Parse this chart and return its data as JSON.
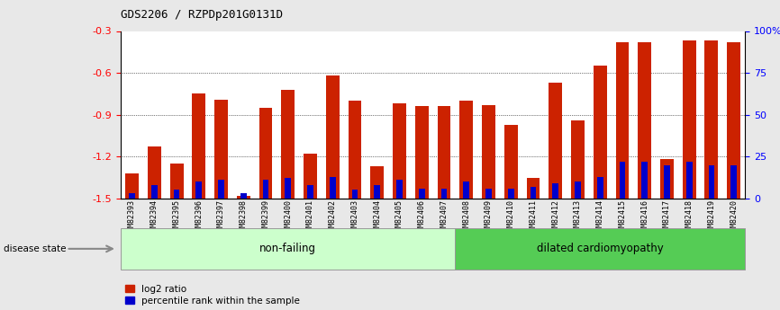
{
  "title": "GDS2206 / RZPDp201G0131D",
  "categories": [
    "GSM82393",
    "GSM82394",
    "GSM82395",
    "GSM82396",
    "GSM82397",
    "GSM82398",
    "GSM82399",
    "GSM82400",
    "GSM82401",
    "GSM82402",
    "GSM82403",
    "GSM82404",
    "GSM82405",
    "GSM82406",
    "GSM82407",
    "GSM82408",
    "GSM82409",
    "GSM82410",
    "GSM82411",
    "GSM82412",
    "GSM82413",
    "GSM82414",
    "GSM82415",
    "GSM82416",
    "GSM82417",
    "GSM82418",
    "GSM82419",
    "GSM82420"
  ],
  "log2_values": [
    -1.32,
    -1.13,
    -1.25,
    -0.75,
    -0.79,
    -1.48,
    -0.85,
    -0.72,
    -1.18,
    -0.62,
    -0.8,
    -1.27,
    -0.82,
    -0.84,
    -0.84,
    -0.8,
    -0.83,
    -0.97,
    -1.35,
    -0.67,
    -0.94,
    -0.55,
    -0.38,
    -0.38,
    -1.22,
    -0.37,
    -0.37,
    -0.38
  ],
  "percentile_values": [
    3,
    8,
    5,
    10,
    11,
    3,
    11,
    12,
    8,
    13,
    5,
    8,
    11,
    6,
    6,
    10,
    6,
    6,
    7,
    9,
    10,
    13,
    22,
    22,
    20,
    22,
    20,
    20
  ],
  "non_failing_count": 15,
  "bar_color": "#cc2200",
  "percentile_color": "#0000cc",
  "ylim_left": [
    -1.5,
    -0.3
  ],
  "ylim_right": [
    0,
    100
  ],
  "yticks_left": [
    -1.5,
    -1.2,
    -0.9,
    -0.6,
    -0.3
  ],
  "yticks_right": [
    0,
    25,
    50,
    75,
    100
  ],
  "background_plot": "#ffffff",
  "fig_bg": "#e8e8e8",
  "background_label_nf": "#ccffcc",
  "background_label_dc": "#55cc55",
  "label_nf": "non-failing",
  "label_dc": "dilated cardiomyopathy",
  "legend_log2": "log2 ratio",
  "legend_pct": "percentile rank within the sample",
  "disease_state_label": "disease state"
}
